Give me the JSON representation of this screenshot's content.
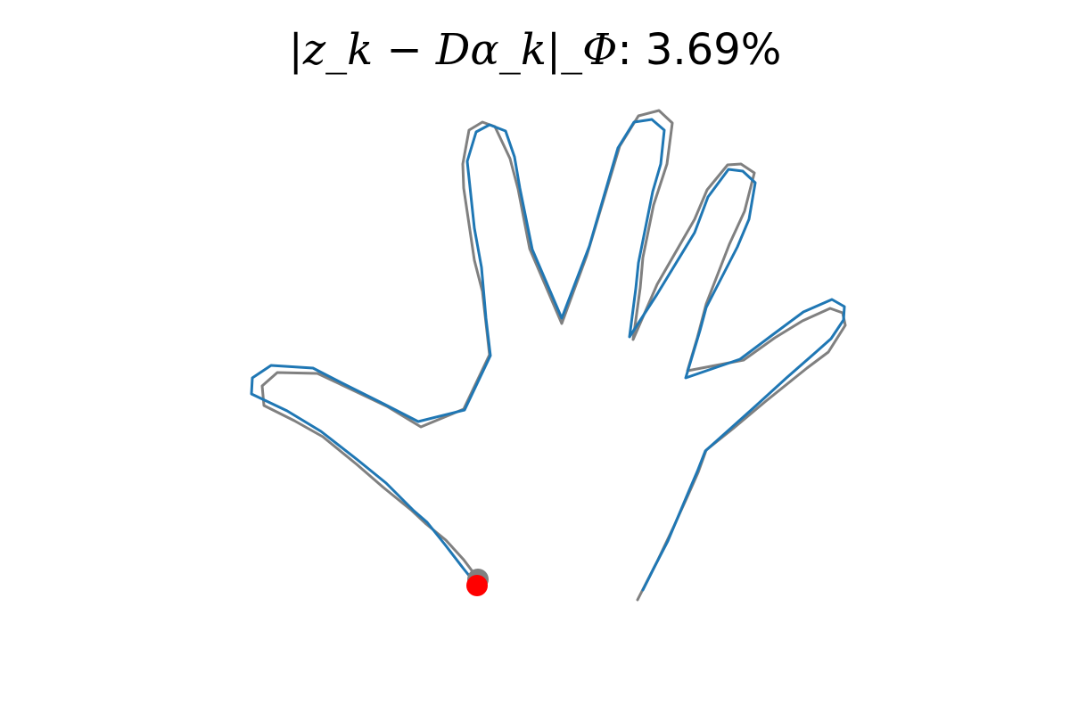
{
  "chart_data": {
    "type": "line",
    "title_math": "|z_k − Dα_k|_Φ",
    "title_value": ": 3.69%",
    "axes_visible": false,
    "grid": false,
    "legend": "none",
    "series": [
      {
        "color": "#808080",
        "points": [
          [
            535,
            648
          ],
          [
            520,
            628
          ],
          [
            500,
            606
          ],
          [
            478,
            588
          ],
          [
            462,
            573
          ],
          [
            430,
            547
          ],
          [
            400,
            521
          ],
          [
            362,
            490
          ],
          [
            330,
            472
          ],
          [
            296,
            455
          ],
          [
            294,
            433
          ],
          [
            311,
            418
          ],
          [
            356,
            419
          ],
          [
            392,
            436
          ],
          [
            434,
            456
          ],
          [
            472,
            479
          ],
          [
            520,
            459
          ],
          [
            549,
            398
          ],
          [
            541,
            327
          ],
          [
            532,
            292
          ],
          [
            520,
            211
          ],
          [
            519,
            184
          ],
          [
            526,
            146
          ],
          [
            541,
            137
          ],
          [
            555,
            142
          ],
          [
            572,
            178
          ],
          [
            581,
            212
          ],
          [
            594,
            279
          ],
          [
            630,
            363
          ],
          [
            658,
            287
          ],
          [
            695,
            164
          ],
          [
            716,
            130
          ],
          [
            739,
            124
          ],
          [
            754,
            138
          ],
          [
            748,
            184
          ],
          [
            733,
            230
          ],
          [
            721,
            289
          ],
          [
            718,
            323
          ],
          [
            710,
            381
          ],
          [
            737,
            319
          ],
          [
            779,
            246
          ],
          [
            793,
            213
          ],
          [
            816,
            185
          ],
          [
            831,
            184
          ],
          [
            846,
            194
          ],
          [
            835,
            237
          ],
          [
            818,
            274
          ],
          [
            792,
            341
          ],
          [
            782,
            379
          ],
          [
            771,
            416
          ],
          [
            834,
            404
          ],
          [
            869,
            379
          ],
          [
            900,
            360
          ],
          [
            931,
            346
          ],
          [
            945,
            351
          ],
          [
            948,
            365
          ],
          [
            929,
            395
          ],
          [
            905,
            413
          ],
          [
            859,
            450
          ],
          [
            822,
            481
          ],
          [
            792,
            505
          ],
          [
            783,
            530
          ],
          [
            771,
            557
          ],
          [
            756,
            590
          ],
          [
            737,
            630
          ],
          [
            715,
            673
          ]
        ]
      },
      {
        "color": "#1f77b4",
        "points": [
          [
            535,
            657
          ],
          [
            519,
            637
          ],
          [
            499,
            611
          ],
          [
            479,
            586
          ],
          [
            464,
            573
          ],
          [
            433,
            542
          ],
          [
            401,
            516
          ],
          [
            360,
            484
          ],
          [
            322,
            461
          ],
          [
            282,
            442
          ],
          [
            283,
            424
          ],
          [
            304,
            410
          ],
          [
            351,
            413
          ],
          [
            388,
            432
          ],
          [
            430,
            453
          ],
          [
            469,
            473
          ],
          [
            521,
            460
          ],
          [
            550,
            399
          ],
          [
            545,
            357
          ],
          [
            540,
            300
          ],
          [
            532,
            256
          ],
          [
            524,
            181
          ],
          [
            534,
            148
          ],
          [
            549,
            140
          ],
          [
            567,
            147
          ],
          [
            577,
            176
          ],
          [
            583,
            211
          ],
          [
            597,
            280
          ],
          [
            630,
            357
          ],
          [
            661,
            276
          ],
          [
            693,
            166
          ],
          [
            711,
            137
          ],
          [
            731,
            134
          ],
          [
            745,
            146
          ],
          [
            741,
            184
          ],
          [
            732,
            215
          ],
          [
            716,
            295
          ],
          [
            713,
            324
          ],
          [
            706,
            378
          ],
          [
            737,
            330
          ],
          [
            779,
            261
          ],
          [
            794,
            221
          ],
          [
            817,
            190
          ],
          [
            833,
            192
          ],
          [
            847,
            205
          ],
          [
            840,
            246
          ],
          [
            827,
            277
          ],
          [
            792,
            345
          ],
          [
            785,
            371
          ],
          [
            769,
            424
          ],
          [
            830,
            403
          ],
          [
            866,
            376
          ],
          [
            901,
            350
          ],
          [
            933,
            336
          ],
          [
            947,
            344
          ],
          [
            946,
            359
          ],
          [
            932,
            380
          ],
          [
            914,
            396
          ],
          [
            882,
            424
          ],
          [
            848,
            455
          ],
          [
            819,
            481
          ],
          [
            791,
            506
          ],
          [
            782,
            529
          ],
          [
            773,
            550
          ],
          [
            749,
            607
          ],
          [
            734,
            636
          ],
          [
            721,
            662
          ]
        ]
      }
    ],
    "markers": [
      {
        "color": "#808080",
        "point": [
          536,
          650
        ]
      },
      {
        "color": "#ff0000",
        "point": [
          535,
          657
        ]
      }
    ]
  }
}
